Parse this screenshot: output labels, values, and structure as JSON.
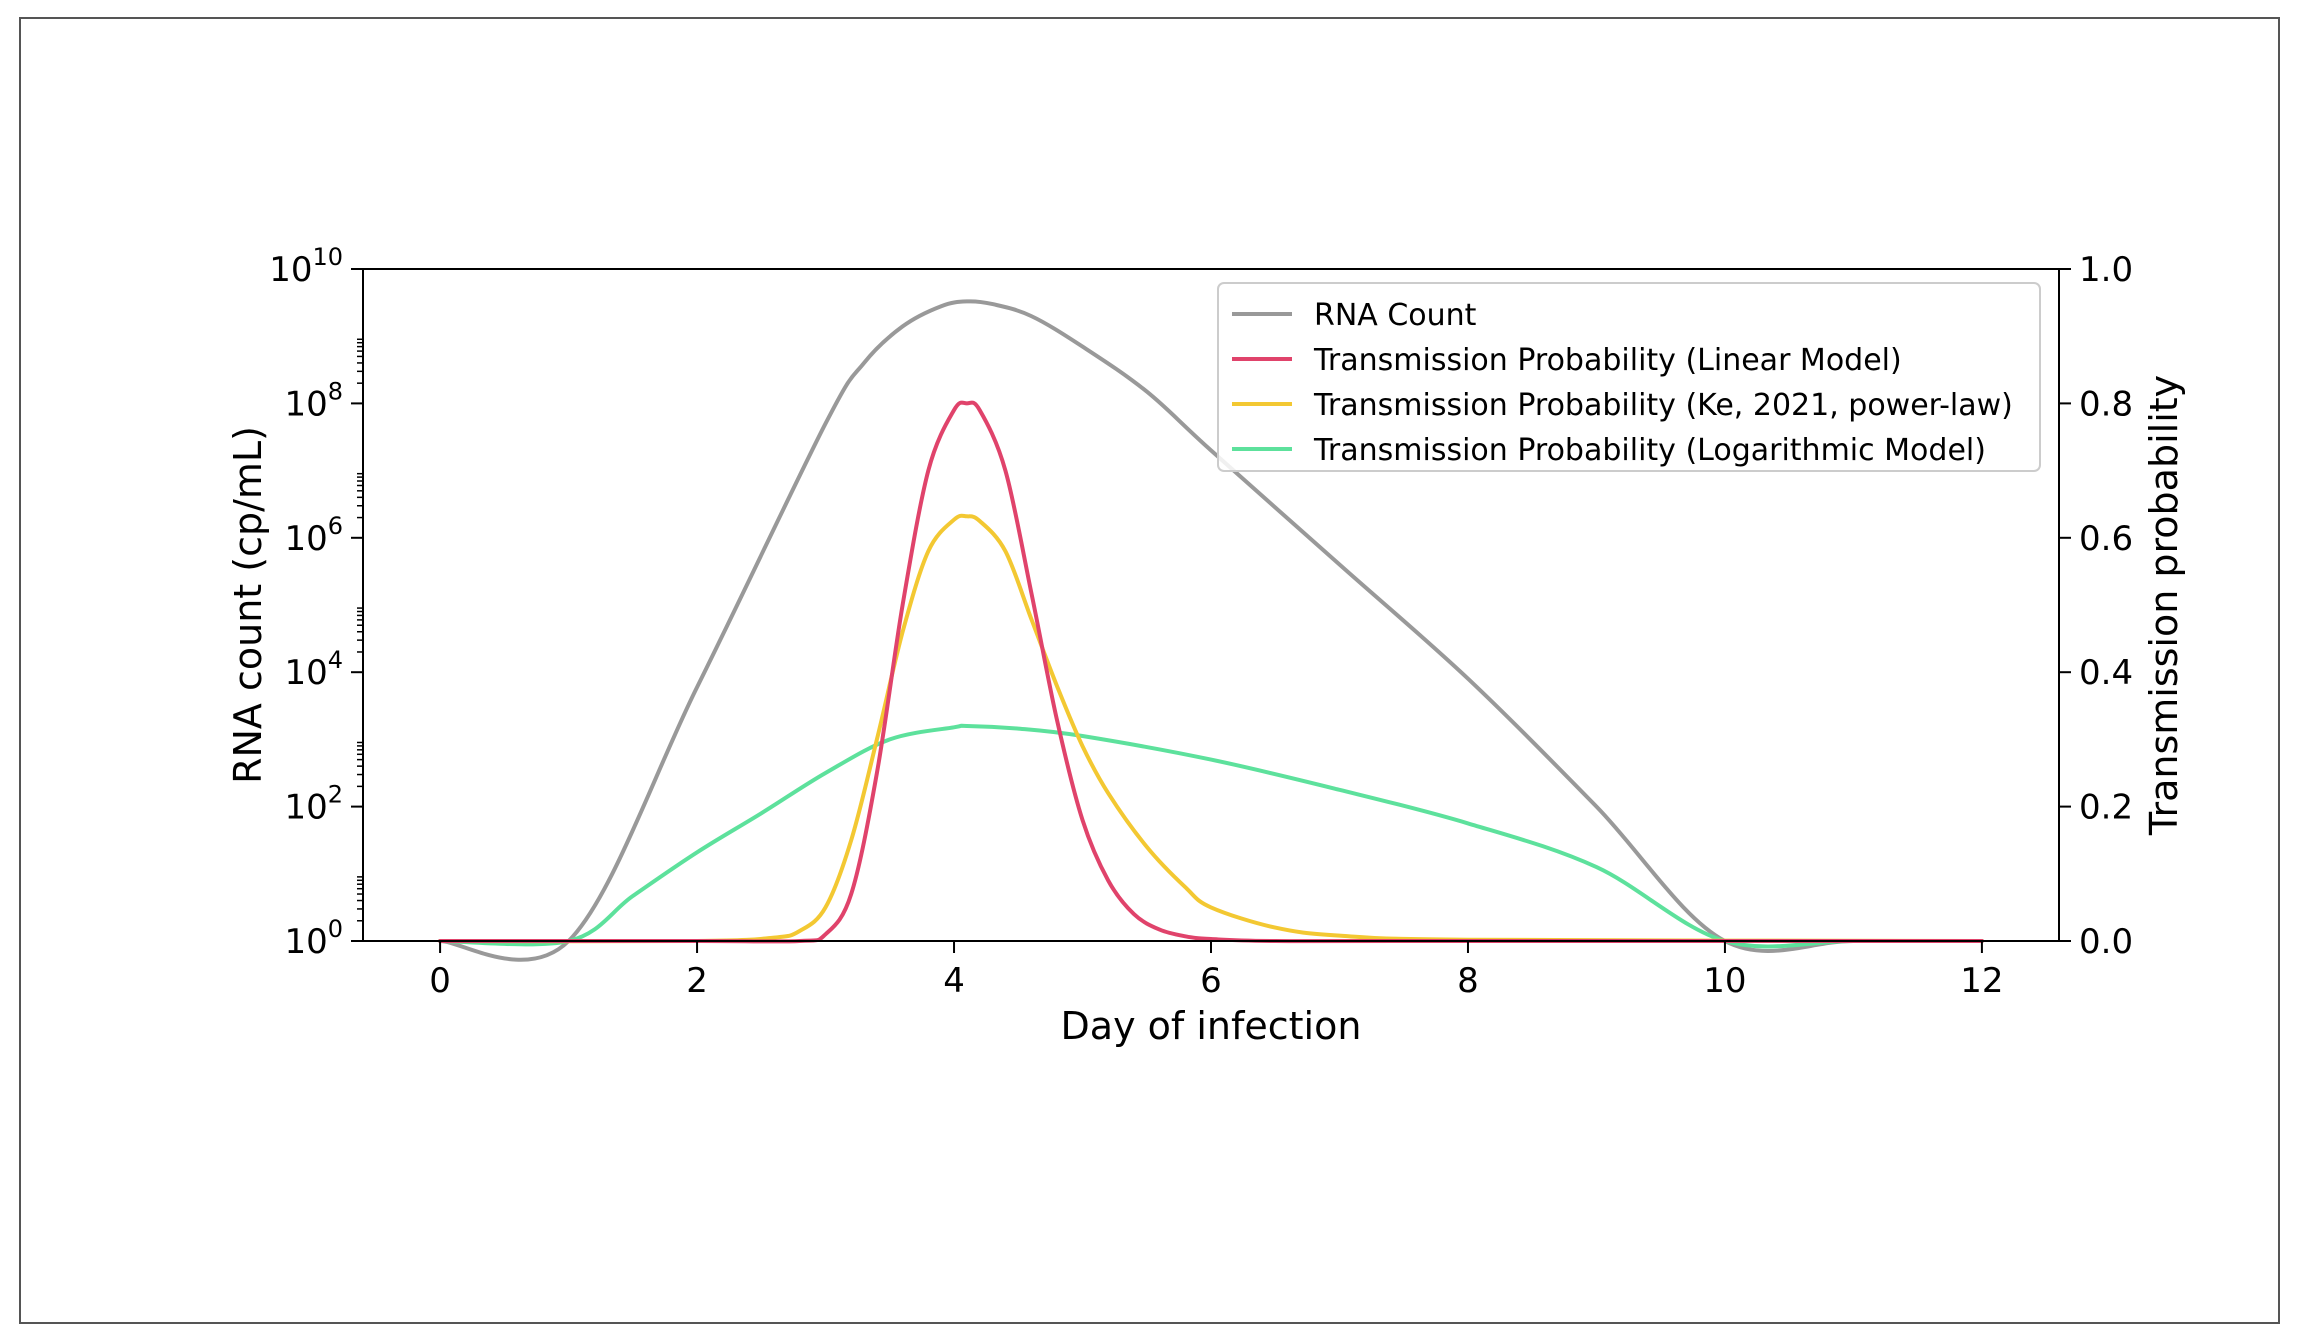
{
  "chart_data": {
    "type": "line",
    "xlabel": "Day of infection",
    "ylabel_left": "RNA count (cp/mL)",
    "ylabel_right": "Transmission probability",
    "xlim": [
      -0.6,
      12.6
    ],
    "x_ticks": [
      0,
      2,
      4,
      6,
      8,
      10,
      12
    ],
    "y_left_scale": "log",
    "y_left_lim": [
      1,
      10000000000
    ],
    "y_left_ticks": [
      {
        "base": "10",
        "exp": "0",
        "value": 1
      },
      {
        "base": "10",
        "exp": "2",
        "value": 100
      },
      {
        "base": "10",
        "exp": "4",
        "value": 10000
      },
      {
        "base": "10",
        "exp": "6",
        "value": 1000000
      },
      {
        "base": "10",
        "exp": "8",
        "value": 100000000
      },
      {
        "base": "10",
        "exp": "10",
        "value": 10000000000
      }
    ],
    "y_right_lim": [
      0,
      1.0
    ],
    "y_right_ticks": [
      "0.0",
      "0.2",
      "0.4",
      "0.6",
      "0.8",
      "1.0"
    ],
    "grid": false,
    "legend_position": "top-right",
    "series": [
      {
        "name": "RNA Count",
        "axis": "left",
        "color": "#999999",
        "x": [
          0,
          1,
          2,
          3,
          3.3,
          3.6,
          3.9,
          4.1,
          4.3,
          4.6,
          5,
          5.5,
          6,
          7,
          8,
          9,
          10,
          11,
          12
        ],
        "y": [
          1,
          1,
          6000,
          50000000,
          400000000,
          1400000000,
          2800000000,
          3300000000,
          3000000000,
          2000000000,
          700000000,
          150000000,
          20000000,
          400000,
          8000,
          100,
          1,
          1,
          1
        ]
      },
      {
        "name": "Transmission Probability (Linear Model)",
        "axis": "right",
        "color": "#e0436b",
        "x": [
          0,
          2,
          2.8,
          3.0,
          3.2,
          3.4,
          3.6,
          3.8,
          4.0,
          4.1,
          4.2,
          4.4,
          4.6,
          4.8,
          5.0,
          5.2,
          5.4,
          5.6,
          5.8,
          6.0,
          6.5,
          8,
          12
        ],
        "y": [
          0,
          0,
          0.0,
          0.01,
          0.07,
          0.25,
          0.5,
          0.7,
          0.79,
          0.8,
          0.79,
          0.7,
          0.52,
          0.33,
          0.18,
          0.09,
          0.04,
          0.017,
          0.007,
          0.003,
          0.0,
          0,
          0
        ]
      },
      {
        "name": "Transmission Probability (Ke, 2021, power-law)",
        "axis": "right",
        "color": "#f3c832",
        "x": [
          0,
          2,
          2.6,
          2.8,
          3.0,
          3.2,
          3.4,
          3.6,
          3.8,
          4.0,
          4.1,
          4.2,
          4.4,
          4.6,
          4.8,
          5.0,
          5.2,
          5.5,
          5.8,
          6.0,
          6.5,
          7,
          8,
          12
        ],
        "y": [
          0,
          0,
          0.005,
          0.015,
          0.05,
          0.15,
          0.3,
          0.46,
          0.58,
          0.627,
          0.632,
          0.625,
          0.58,
          0.48,
          0.38,
          0.29,
          0.22,
          0.14,
          0.08,
          0.05,
          0.02,
          0.008,
          0.002,
          0
        ]
      },
      {
        "name": "Transmission Probability (Logarithmic Model)",
        "axis": "right",
        "color": "#5de19c",
        "x": [
          0,
          1,
          1.5,
          2,
          2.5,
          3,
          3.5,
          4,
          4.1,
          4.5,
          5,
          6,
          7,
          8,
          9,
          10,
          11,
          12
        ],
        "y": [
          0,
          0,
          0.067,
          0.132,
          0.19,
          0.25,
          0.3,
          0.318,
          0.32,
          0.316,
          0.305,
          0.27,
          0.225,
          0.175,
          0.11,
          0.0,
          0,
          0
        ]
      }
    ]
  }
}
